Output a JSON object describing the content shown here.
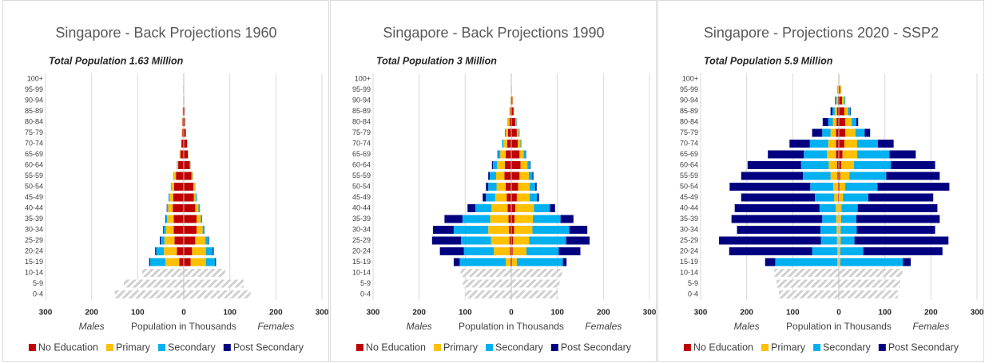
{
  "chart_data": [
    {
      "type": "pyramid",
      "title": "Singapore - Back Projections 1960",
      "subtitle": "Total Population 1.63 Million",
      "x_label": "Population in Thousands",
      "left_label": "Males",
      "right_label": "Females",
      "xlim": [
        -300,
        300
      ],
      "xticks": [
        {
          "value": -300,
          "label": "300"
        },
        {
          "value": -200,
          "label": "200"
        },
        {
          "value": -100,
          "label": "100"
        },
        0,
        100,
        200,
        300
      ],
      "grid": true,
      "categories": [
        "0-4",
        "5-9",
        "10-14",
        "15-19",
        "20-24",
        "25-29",
        "30-34",
        "35-39",
        "40-44",
        "45-49",
        "50-54",
        "55-59",
        "60-64",
        "65-69",
        "70-74",
        "75-79",
        "80-84",
        "85-89",
        "90-94",
        "95-99",
        "100+"
      ],
      "hatched": {
        "color": "#d0d0d0",
        "males": [
          150,
          130,
          90
        ],
        "females": [
          145,
          130,
          90
        ]
      },
      "series": [
        {
          "name": "No Education",
          "color": "#c00000",
          "males": [
            null,
            null,
            null,
            10,
            15,
            20,
            22,
            22,
            24,
            23,
            21,
            17,
            12,
            7,
            5,
            3,
            2.5,
            2,
            1,
            1,
            0
          ],
          "females": [
            null,
            null,
            null,
            15,
            18,
            25,
            28,
            28,
            25,
            22,
            21,
            17,
            13,
            9,
            7,
            4.5,
            2.7,
            2,
            1,
            0.5,
            0
          ]
        },
        {
          "name": "Primary",
          "color": "#ffc000",
          "males": [
            null,
            null,
            null,
            30,
            28,
            22,
            17,
            14,
            10,
            8,
            6,
            4,
            2.5,
            1.5,
            0.8,
            0.7,
            0.4,
            0,
            0,
            0,
            0
          ],
          "females": [
            null,
            null,
            null,
            33,
            30,
            22,
            13,
            9,
            7,
            4,
            3,
            2,
            1.5,
            0.7,
            0.7,
            0.4,
            0.2,
            0,
            0,
            0,
            0
          ]
        },
        {
          "name": "Secondary",
          "color": "#00b0f0",
          "males": [
            null,
            null,
            null,
            33,
            17,
            8,
            5,
            3,
            2.5,
            1.8,
            1,
            0.8,
            0.4,
            0.4,
            0.2,
            0.3,
            0.1,
            0,
            0,
            0,
            0
          ],
          "females": [
            null,
            null,
            null,
            20,
            15,
            7,
            3.5,
            2.5,
            2.5,
            1.8,
            0.8,
            0.8,
            0.4,
            0.2,
            0.2,
            0.1,
            0.1,
            0,
            0,
            0,
            0
          ]
        },
        {
          "name": "Post Secondary",
          "color": "#000080",
          "males": [
            null,
            null,
            null,
            2,
            2,
            2,
            1,
            1,
            0.5,
            0.2,
            0,
            0.2,
            0.1,
            0.1,
            0,
            0,
            0,
            0,
            0,
            0,
            0
          ],
          "females": [
            null,
            null,
            null,
            2,
            2,
            1,
            0.5,
            0.5,
            0.5,
            0.2,
            0.2,
            0.2,
            0.1,
            0.1,
            0.1,
            0,
            0,
            0,
            0,
            0,
            0
          ]
        }
      ]
    },
    {
      "type": "pyramid",
      "title": "Singapore - Back Projections 1990",
      "subtitle": "Total Population 3 Million",
      "x_label": "Population in Thousands",
      "left_label": "Males",
      "right_label": "Females",
      "xlim": [
        -300,
        300
      ],
      "xticks": [
        {
          "value": -300,
          "label": "300"
        },
        {
          "value": -200,
          "label": "200"
        },
        {
          "value": -100,
          "label": "100"
        },
        0,
        100,
        200,
        300
      ],
      "grid": true,
      "categories": [
        "0-4",
        "5-9",
        "10-14",
        "15-19",
        "20-24",
        "25-29",
        "30-34",
        "35-39",
        "40-44",
        "45-49",
        "50-54",
        "55-59",
        "60-64",
        "65-69",
        "70-74",
        "75-79",
        "80-84",
        "85-89",
        "90-94",
        "95-99",
        "100+"
      ],
      "hatched": {
        "color": "#d0d0d0",
        "males": [
          100,
          105,
          110
        ],
        "females": [
          100,
          105,
          110
        ]
      },
      "series": [
        {
          "name": "No Education",
          "color": "#c00000",
          "males": [
            null,
            null,
            null,
            2,
            3,
            4,
            5,
            6,
            8,
            10,
            12,
            15,
            14,
            12,
            9,
            7,
            4,
            2,
            1,
            0.5,
            0
          ],
          "females": [
            null,
            null,
            null,
            2,
            3,
            4,
            6,
            7,
            9,
            12,
            15,
            18,
            20,
            18,
            14,
            12,
            9,
            5,
            2.5,
            1,
            0
          ]
        },
        {
          "name": "Primary",
          "color": "#ffc000",
          "males": [
            null,
            null,
            null,
            10,
            35,
            40,
            45,
            40,
            35,
            25,
            20,
            18,
            17,
            12,
            8,
            5,
            3,
            1.5,
            0.8,
            0.3,
            0
          ],
          "females": [
            null,
            null,
            null,
            10,
            30,
            35,
            40,
            40,
            40,
            28,
            25,
            20,
            15,
            9,
            6,
            4,
            2,
            1,
            0.5,
            0,
            0
          ]
        },
        {
          "name": "Secondary",
          "color": "#00b0f0",
          "males": [
            null,
            null,
            null,
            100,
            65,
            65,
            75,
            60,
            35,
            20,
            18,
            14,
            9,
            5,
            3,
            2,
            1,
            0.5,
            0.2,
            0,
            0
          ],
          "females": [
            null,
            null,
            null,
            100,
            70,
            80,
            80,
            60,
            35,
            16,
            12,
            8,
            6,
            4,
            2,
            2,
            1,
            0,
            0,
            0,
            0
          ]
        },
        {
          "name": "Post Secondary",
          "color": "#000080",
          "males": [
            null,
            null,
            null,
            13,
            52,
            63,
            45,
            39,
            17,
            7,
            5,
            3,
            2,
            1,
            0,
            0,
            0,
            0,
            0,
            0,
            0
          ],
          "females": [
            null,
            null,
            null,
            8,
            47,
            51,
            39,
            28,
            11,
            4,
            3,
            2,
            1,
            1,
            0,
            0,
            0,
            0,
            0,
            0,
            0
          ]
        }
      ]
    },
    {
      "type": "pyramid",
      "title": "Singapore - Projections 2020 - SSP2",
      "subtitle": "Total Population 5.9 Million",
      "x_label": "Population in Thousands",
      "left_label": "Males",
      "right_label": "Females",
      "xlim": [
        -300,
        300
      ],
      "xticks": [
        {
          "value": -300,
          "label": "300"
        },
        {
          "value": -200,
          "label": "200"
        },
        {
          "value": -100,
          "label": "100"
        },
        0,
        100,
        200,
        300
      ],
      "grid": true,
      "categories": [
        "0-4",
        "5-9",
        "10-14",
        "15-19",
        "20-24",
        "25-29",
        "30-34",
        "35-39",
        "40-44",
        "45-49",
        "50-54",
        "55-59",
        "60-64",
        "65-69",
        "70-74",
        "75-79",
        "80-84",
        "85-89",
        "90-94",
        "95-99",
        "100+"
      ],
      "hatched": {
        "color": "#d0d0d0",
        "males": [
          130,
          135,
          140
        ],
        "females": [
          128,
          133,
          138
        ]
      },
      "series": [
        {
          "name": "No Education",
          "color": "#c00000",
          "males": [
            null,
            null,
            null,
            1,
            1,
            1,
            1,
            1,
            1,
            2,
            2,
            3,
            4,
            6,
            6,
            6,
            5,
            4,
            2,
            1,
            0.5
          ],
          "females": [
            null,
            null,
            null,
            1,
            1,
            1,
            1,
            1,
            1,
            1,
            2,
            3,
            5,
            8,
            12,
            14,
            14,
            12,
            7,
            3,
            1
          ]
        },
        {
          "name": "Primary",
          "color": "#ffc000",
          "males": [
            null,
            null,
            null,
            2,
            2,
            3,
            4,
            5,
            6,
            8,
            10,
            15,
            18,
            20,
            17,
            12,
            8,
            5,
            3,
            1,
            0.5
          ],
          "females": [
            null,
            null,
            null,
            2,
            2,
            3,
            3,
            4,
            5,
            8,
            12,
            20,
            28,
            32,
            28,
            22,
            14,
            8,
            5,
            2,
            0
          ]
        },
        {
          "name": "Secondary",
          "color": "#00b0f0",
          "males": [
            null,
            null,
            null,
            135,
            55,
            35,
            35,
            30,
            35,
            42,
            50,
            60,
            60,
            50,
            40,
            18,
            10,
            5,
            2,
            1,
            0
          ],
          "females": [
            null,
            null,
            null,
            136,
            50,
            30,
            35,
            33,
            35,
            55,
            70,
            80,
            80,
            70,
            45,
            20,
            10,
            5,
            2,
            0,
            0
          ]
        },
        {
          "name": "Post Secondary",
          "color": "#000080",
          "males": [
            null,
            null,
            null,
            22,
            180,
            221,
            181,
            197,
            184,
            160,
            175,
            134,
            116,
            78,
            44,
            22,
            12,
            4,
            1,
            0,
            0
          ],
          "females": [
            null,
            null,
            null,
            17,
            172,
            204,
            170,
            181,
            173,
            141,
            156,
            116,
            96,
            57,
            34,
            12,
            4,
            1,
            0,
            0,
            0
          ]
        }
      ]
    }
  ]
}
